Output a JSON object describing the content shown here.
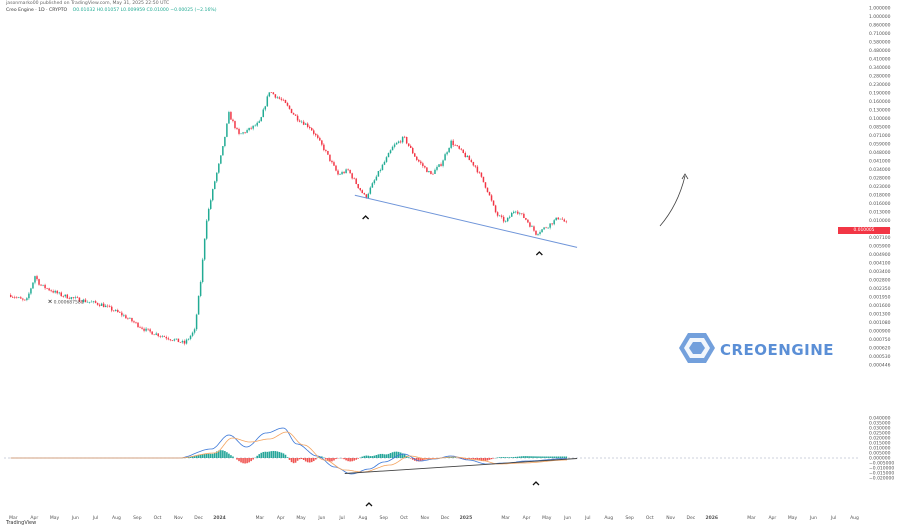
{
  "header": {
    "published": "jasonmarko00 published on TradingView.com, May 31, 2025 22:50 UTC",
    "symbol": "Creo Engine · 1D · CRYPTO",
    "ohlc": "O0.01032 H0.01057 L0.009959 C0.01000 −0.00025 (−2.16%)"
  },
  "price_tag": "0.010005",
  "tradingview_label": "TradingView",
  "watermark": {
    "text": "CREOENGINE",
    "color": "#5b8fd6"
  },
  "colors": {
    "up": "#22ab94",
    "down": "#f23645",
    "trendline": "#6f95d9",
    "macd": "#3c78d8",
    "signal": "#f4a460",
    "hist_up": "#26a69a",
    "hist_down": "#ef5350",
    "support_line": "#444444"
  },
  "annotations": {
    "icon_names": [
      "chevron-up-icon",
      "arrow-curve-icon",
      "crossed-flag-icon"
    ],
    "low_label": "0.000687581"
  },
  "chart_data": [
    {
      "type": "candlestick",
      "title": "Creo Engine · 1D · CRYPTO",
      "y_scale": "log",
      "y_ticks": [
        "1.000000",
        "1.000000",
        "0.860000",
        "0.710000",
        "0.580000",
        "0.480000",
        "0.410000",
        "0.340000",
        "0.280000",
        "0.230000",
        "0.190000",
        "0.160000",
        "0.130000",
        "0.100000",
        "0.085000",
        "0.071000",
        "0.059000",
        "0.048000",
        "0.041000",
        "0.034000",
        "0.028000",
        "0.023000",
        "0.018000",
        "0.016000",
        "0.013000",
        "0.010000",
        "0.008700",
        "0.007100",
        "0.005900",
        "0.004900",
        "0.004100",
        "0.003400",
        "0.002800",
        "0.002350",
        "0.001950",
        "0.001600",
        "0.001300",
        "0.001080",
        "0.000900",
        "0.000750",
        "0.000620",
        "0.000530",
        "0.000446"
      ],
      "x_ticks": [
        "Mar",
        "Apr",
        "May",
        "Jun",
        "Jul",
        "Aug",
        "Sep",
        "Oct",
        "Nov",
        "Dec",
        "2024",
        "Mar",
        "Apr",
        "May",
        "Jun",
        "Jul",
        "Aug",
        "Sep",
        "Oct",
        "Nov",
        "Dec",
        "2025",
        "Mar",
        "Apr",
        "May",
        "Jun",
        "Jul",
        "Aug",
        "Sep",
        "Oct",
        "Nov",
        "Dec",
        "2026",
        "Mar",
        "Apr",
        "May",
        "Jun",
        "Jul",
        "Aug"
      ],
      "close_path": [
        [
          "2023-02-25",
          0.0021
        ],
        [
          "2023-03-20",
          0.0018
        ],
        [
          "2023-04-02",
          0.0032
        ],
        [
          "2023-04-10",
          0.0026
        ],
        [
          "2023-05-10",
          0.0021
        ],
        [
          "2023-06-05",
          0.0019
        ],
        [
          "2023-07-10",
          0.0017
        ],
        [
          "2023-08-10",
          0.00135
        ],
        [
          "2023-09-15",
          0.00095
        ],
        [
          "2023-10-15",
          0.00082
        ],
        [
          "2023-11-10",
          0.00072
        ],
        [
          "2023-11-25",
          0.00095
        ],
        [
          "2023-12-05",
          0.0032
        ],
        [
          "2023-12-12",
          0.0105
        ],
        [
          "2023-12-25",
          0.026
        ],
        [
          "2024-01-05",
          0.05
        ],
        [
          "2024-01-15",
          0.115
        ],
        [
          "2024-01-30",
          0.072
        ],
        [
          "2024-02-15",
          0.082
        ],
        [
          "2024-03-01",
          0.095
        ],
        [
          "2024-03-15",
          0.19
        ],
        [
          "2024-04-05",
          0.15
        ],
        [
          "2024-04-25",
          0.105
        ],
        [
          "2024-05-15",
          0.085
        ],
        [
          "2024-06-05",
          0.052
        ],
        [
          "2024-06-25",
          0.03
        ],
        [
          "2024-07-10",
          0.033
        ],
        [
          "2024-07-25",
          0.023
        ],
        [
          "2024-08-05",
          0.018
        ],
        [
          "2024-08-25",
          0.032
        ],
        [
          "2024-09-15",
          0.056
        ],
        [
          "2024-10-01",
          0.068
        ],
        [
          "2024-10-20",
          0.042
        ],
        [
          "2024-11-10",
          0.03
        ],
        [
          "2024-11-25",
          0.038
        ],
        [
          "2024-12-10",
          0.062
        ],
        [
          "2024-12-25",
          0.05
        ],
        [
          "2025-01-15",
          0.036
        ],
        [
          "2025-02-01",
          0.022
        ],
        [
          "2025-02-15",
          0.0125
        ],
        [
          "2025-03-01",
          0.0105
        ],
        [
          "2025-03-15",
          0.014
        ],
        [
          "2025-04-01",
          0.011
        ],
        [
          "2025-04-15",
          0.0082
        ],
        [
          "2025-05-01",
          0.0095
        ],
        [
          "2025-05-20",
          0.0118
        ],
        [
          "2025-05-31",
          0.01
        ]
      ],
      "trendline": [
        [
          "2024-07-20",
          0.019
        ],
        [
          "2025-06-15",
          0.006
        ]
      ],
      "projection": "curved arrow pointing up to the right"
    },
    {
      "type": "macd",
      "y_ticks": [
        "0.040000",
        "0.035000",
        "0.030000",
        "0.025000",
        "0.020000",
        "0.015000",
        "0.010000",
        "0.005000",
        "0.000000",
        "−0.005000",
        "−0.010000",
        "−0.015000",
        "−0.020000"
      ],
      "y_range": [
        -0.02,
        0.04
      ],
      "macd": [
        [
          "2023-02-25",
          0.0
        ],
        [
          "2023-06-01",
          0.0
        ],
        [
          "2023-11-01",
          0.0
        ],
        [
          "2023-12-20",
          0.009
        ],
        [
          "2024-01-15",
          0.023
        ],
        [
          "2024-02-10",
          0.011
        ],
        [
          "2024-03-10",
          0.025
        ],
        [
          "2024-04-05",
          0.03
        ],
        [
          "2024-04-25",
          0.014
        ],
        [
          "2024-05-25",
          0.002
        ],
        [
          "2024-06-20",
          -0.009
        ],
        [
          "2024-07-15",
          -0.016
        ],
        [
          "2024-08-10",
          -0.011
        ],
        [
          "2024-09-01",
          -0.004
        ],
        [
          "2024-10-01",
          0.004
        ],
        [
          "2024-10-25",
          -0.003
        ],
        [
          "2024-11-15",
          -0.001
        ],
        [
          "2024-12-10",
          0.002
        ],
        [
          "2025-01-05",
          -0.002
        ],
        [
          "2025-02-01",
          -0.006
        ],
        [
          "2025-03-01",
          -0.005
        ],
        [
          "2025-04-01",
          -0.003
        ],
        [
          "2025-05-31",
          -0.0005
        ]
      ],
      "signal": [
        [
          "2023-02-25",
          0.0
        ],
        [
          "2023-11-01",
          0.0
        ],
        [
          "2023-12-25",
          0.005
        ],
        [
          "2024-01-20",
          0.02
        ],
        [
          "2024-02-15",
          0.016
        ],
        [
          "2024-03-15",
          0.019
        ],
        [
          "2024-04-10",
          0.026
        ],
        [
          "2024-05-05",
          0.013
        ],
        [
          "2024-06-05",
          -0.002
        ],
        [
          "2024-07-05",
          -0.012
        ],
        [
          "2024-08-01",
          -0.014
        ],
        [
          "2024-09-10",
          -0.007
        ],
        [
          "2024-10-10",
          0.002
        ],
        [
          "2024-11-05",
          -0.001
        ],
        [
          "2024-12-15",
          0.001
        ],
        [
          "2025-01-20",
          -0.002
        ],
        [
          "2025-02-20",
          -0.006
        ],
        [
          "2025-03-25",
          -0.005
        ],
        [
          "2025-05-31",
          -0.002
        ]
      ],
      "support_line": [
        [
          "2024-07-05",
          -0.0155
        ],
        [
          "2025-06-15",
          -0.0005
        ]
      ]
    }
  ]
}
